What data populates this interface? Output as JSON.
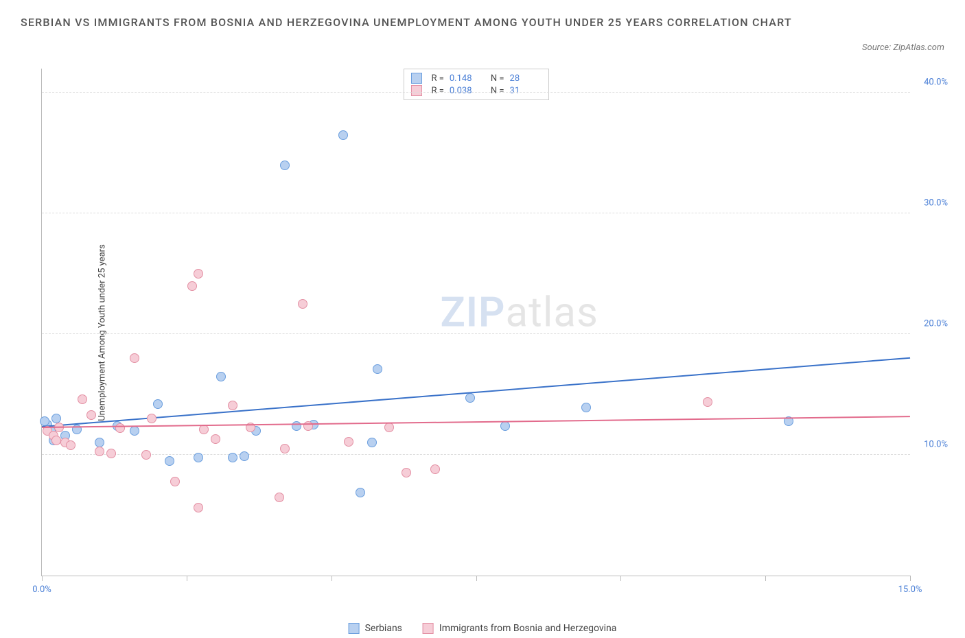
{
  "title": "SERBIAN VS IMMIGRANTS FROM BOSNIA AND HERZEGOVINA UNEMPLOYMENT AMONG YOUTH UNDER 25 YEARS CORRELATION CHART",
  "source_label": "Source: ZipAtlas.com",
  "y_axis_title": "Unemployment Among Youth under 25 years",
  "watermark_a": "ZIP",
  "watermark_b": "atlas",
  "chart": {
    "type": "scatter",
    "background_color": "#ffffff",
    "grid_color": "#dddddd",
    "axis_color": "#bbbbbb",
    "tick_label_color": "#4a7fd6",
    "xlim": [
      0,
      15
    ],
    "ylim": [
      0,
      42
    ],
    "x_ticks": [
      0,
      2.5,
      5,
      7.5,
      10,
      12.5,
      15
    ],
    "x_tick_labels": [
      "0.0%",
      "",
      "",
      "",
      "",
      "",
      "15.0%"
    ],
    "y_grid": [
      10,
      20,
      30,
      40
    ],
    "y_labels": [
      "10.0%",
      "20.0%",
      "30.0%",
      "40.0%"
    ],
    "marker_radius": 7,
    "marker_stroke_width": 1.5,
    "trend_line_width": 2,
    "series": [
      {
        "name": "Serbians",
        "label": "Serbians",
        "R": "0.148",
        "N": "28",
        "fill": "#b8d0f0",
        "stroke": "#6a9ede",
        "line_color": "#3a72c9",
        "trend": {
          "x1": 0,
          "y1": 12.3,
          "x2": 15,
          "y2": 18.0
        },
        "points": [
          {
            "x": 0.1,
            "y": 12.5
          },
          {
            "x": 0.15,
            "y": 12.0
          },
          {
            "x": 0.2,
            "y": 11.2
          },
          {
            "x": 0.25,
            "y": 13.0
          },
          {
            "x": 0.4,
            "y": 11.6
          },
          {
            "x": 0.6,
            "y": 12.1
          },
          {
            "x": 1.0,
            "y": 11.0
          },
          {
            "x": 1.3,
            "y": 12.4
          },
          {
            "x": 1.6,
            "y": 12.0
          },
          {
            "x": 2.0,
            "y": 14.2
          },
          {
            "x": 2.2,
            "y": 9.5
          },
          {
            "x": 2.7,
            "y": 9.8
          },
          {
            "x": 3.1,
            "y": 16.5
          },
          {
            "x": 3.3,
            "y": 9.8
          },
          {
            "x": 3.5,
            "y": 9.9
          },
          {
            "x": 3.7,
            "y": 12.0
          },
          {
            "x": 4.2,
            "y": 34.0
          },
          {
            "x": 4.4,
            "y": 12.4
          },
          {
            "x": 4.7,
            "y": 12.5
          },
          {
            "x": 5.2,
            "y": 36.5
          },
          {
            "x": 5.5,
            "y": 6.9
          },
          {
            "x": 5.7,
            "y": 11.0
          },
          {
            "x": 5.8,
            "y": 17.1
          },
          {
            "x": 7.4,
            "y": 14.7
          },
          {
            "x": 8.0,
            "y": 12.4
          },
          {
            "x": 9.4,
            "y": 13.9
          },
          {
            "x": 12.9,
            "y": 12.8
          },
          {
            "x": 0.05,
            "y": 12.8
          }
        ]
      },
      {
        "name": "Immigrants from Bosnia and Herzegovina",
        "label": "Immigrants from Bosnia and Herzegovina",
        "R": "0.038",
        "N": "31",
        "fill": "#f6cdd7",
        "stroke": "#e38fa3",
        "line_color": "#e26b8c",
        "trend": {
          "x1": 0,
          "y1": 12.2,
          "x2": 15,
          "y2": 13.1
        },
        "points": [
          {
            "x": 0.1,
            "y": 12.0
          },
          {
            "x": 0.2,
            "y": 11.6
          },
          {
            "x": 0.25,
            "y": 11.2
          },
          {
            "x": 0.3,
            "y": 12.3
          },
          {
            "x": 0.4,
            "y": 11.0
          },
          {
            "x": 0.5,
            "y": 10.8
          },
          {
            "x": 0.7,
            "y": 14.6
          },
          {
            "x": 0.85,
            "y": 13.3
          },
          {
            "x": 1.0,
            "y": 10.3
          },
          {
            "x": 1.2,
            "y": 10.1
          },
          {
            "x": 1.35,
            "y": 12.2
          },
          {
            "x": 1.6,
            "y": 18.0
          },
          {
            "x": 1.8,
            "y": 10.0
          },
          {
            "x": 1.9,
            "y": 13.0
          },
          {
            "x": 2.3,
            "y": 7.8
          },
          {
            "x": 2.6,
            "y": 24.0
          },
          {
            "x": 2.7,
            "y": 5.6
          },
          {
            "x": 2.7,
            "y": 25.0
          },
          {
            "x": 2.8,
            "y": 12.1
          },
          {
            "x": 3.0,
            "y": 11.3
          },
          {
            "x": 3.3,
            "y": 14.1
          },
          {
            "x": 3.6,
            "y": 12.3
          },
          {
            "x": 4.1,
            "y": 6.5
          },
          {
            "x": 4.2,
            "y": 10.5
          },
          {
            "x": 4.5,
            "y": 22.5
          },
          {
            "x": 4.6,
            "y": 12.4
          },
          {
            "x": 5.3,
            "y": 11.1
          },
          {
            "x": 6.0,
            "y": 12.3
          },
          {
            "x": 6.3,
            "y": 8.5
          },
          {
            "x": 6.8,
            "y": 8.8
          },
          {
            "x": 11.5,
            "y": 14.4
          }
        ]
      }
    ]
  },
  "legend_top": {
    "r_prefix": "R =",
    "n_prefix": "N ="
  },
  "legend_bottom": {
    "series1_label": "Serbians",
    "series2_label": "Immigrants from Bosnia and Herzegovina"
  }
}
